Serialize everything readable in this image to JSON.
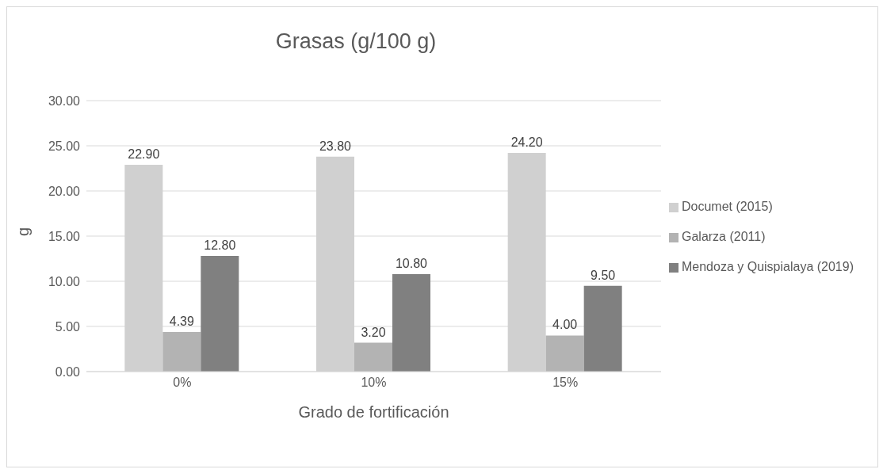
{
  "chart_data": {
    "type": "bar",
    "title": "Grasas (g/100 g)",
    "xlabel": "Grado de fortificación",
    "ylabel": "g",
    "categories": [
      "0%",
      "10%",
      "15%"
    ],
    "series": [
      {
        "name": "Documet (2015)",
        "color": "#d0d0d0",
        "values": [
          22.9,
          23.8,
          24.2
        ],
        "value_labels": [
          "22.90",
          "23.80",
          "24.20"
        ]
      },
      {
        "name": "Galarza (2011)",
        "color": "#b3b3b3",
        "values": [
          4.39,
          3.2,
          4.0
        ],
        "value_labels": [
          "4.39",
          "3.20",
          "4.00"
        ]
      },
      {
        "name": "Mendoza y Quispialaya (2019)",
        "color": "#808080",
        "values": [
          12.8,
          10.8,
          9.5
        ],
        "value_labels": [
          "12.80",
          "10.80",
          "9.50"
        ]
      }
    ],
    "ylim": [
      0,
      30
    ],
    "yticks": [
      {
        "value": 0,
        "label": "0.00"
      },
      {
        "value": 5,
        "label": "5.00"
      },
      {
        "value": 10,
        "label": "10.00"
      },
      {
        "value": 15,
        "label": "15.00"
      },
      {
        "value": 20,
        "label": "20.00"
      },
      {
        "value": 25,
        "label": "25.00"
      },
      {
        "value": 30,
        "label": "30.00"
      }
    ],
    "grid": "y",
    "legend": "right"
  }
}
